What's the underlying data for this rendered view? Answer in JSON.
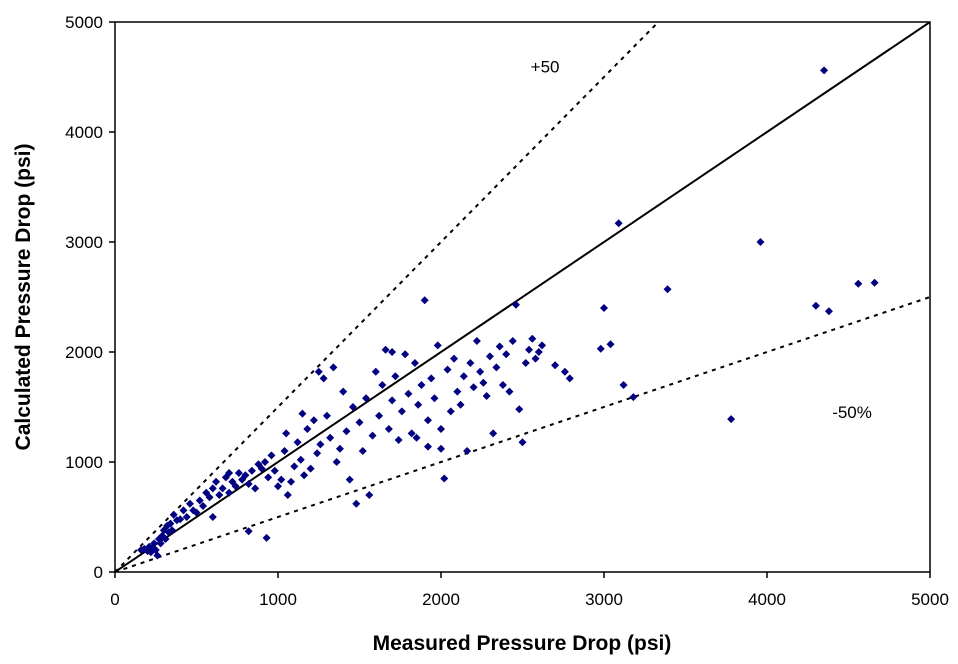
{
  "chart_data": {
    "type": "scatter",
    "title": "",
    "xlabel": "Measured Pressure Drop (psi)",
    "ylabel": "Calculated Pressure Drop (psi)",
    "xlim": [
      0,
      5000
    ],
    "ylim": [
      0,
      5000
    ],
    "x_ticks": [
      "0",
      "1000",
      "2000",
      "3000",
      "4000",
      "5000"
    ],
    "y_ticks": [
      "0",
      "1000",
      "2000",
      "3000",
      "4000",
      "5000"
    ],
    "grid": false,
    "legend": "none",
    "marker": "diamond",
    "colors": {
      "points": "#000080",
      "lines": "#000000"
    },
    "reference_lines": [
      {
        "style": "solid",
        "slope": 1.0
      },
      {
        "style": "dotted",
        "slope": 1.5
      },
      {
        "style": "dotted",
        "slope": 0.5
      }
    ],
    "annotations": [
      {
        "text": "+50",
        "x": 2550,
        "y": 4540
      },
      {
        "text": "-50%",
        "x": 4400,
        "y": 1400
      }
    ],
    "series": [
      {
        "points": [
          [
            160,
            200
          ],
          [
            180,
            210
          ],
          [
            200,
            190
          ],
          [
            210,
            230
          ],
          [
            220,
            180
          ],
          [
            230,
            220
          ],
          [
            240,
            260
          ],
          [
            250,
            200
          ],
          [
            260,
            150
          ],
          [
            270,
            300
          ],
          [
            280,
            260
          ],
          [
            290,
            330
          ],
          [
            300,
            380
          ],
          [
            310,
            300
          ],
          [
            320,
            420
          ],
          [
            330,
            360
          ],
          [
            340,
            440
          ],
          [
            350,
            380
          ],
          [
            360,
            520
          ],
          [
            380,
            470
          ],
          [
            400,
            480
          ],
          [
            420,
            560
          ],
          [
            440,
            500
          ],
          [
            460,
            620
          ],
          [
            480,
            560
          ],
          [
            500,
            540
          ],
          [
            520,
            650
          ],
          [
            540,
            600
          ],
          [
            560,
            720
          ],
          [
            580,
            680
          ],
          [
            600,
            760
          ],
          [
            620,
            820
          ],
          [
            640,
            700
          ],
          [
            660,
            760
          ],
          [
            680,
            860
          ],
          [
            700,
            720
          ],
          [
            720,
            820
          ],
          [
            740,
            780
          ],
          [
            760,
            900
          ],
          [
            780,
            840
          ],
          [
            800,
            880
          ],
          [
            820,
            800
          ],
          [
            840,
            920
          ],
          [
            860,
            760
          ],
          [
            880,
            980
          ],
          [
            900,
            940
          ],
          [
            920,
            1000
          ],
          [
            940,
            860
          ],
          [
            960,
            1060
          ],
          [
            980,
            920
          ],
          [
            1000,
            780
          ],
          [
            1020,
            840
          ],
          [
            1040,
            1100
          ],
          [
            1060,
            700
          ],
          [
            1080,
            820
          ],
          [
            1100,
            960
          ],
          [
            1120,
            1180
          ],
          [
            1140,
            1020
          ],
          [
            1160,
            880
          ],
          [
            1180,
            1300
          ],
          [
            1200,
            940
          ],
          [
            1220,
            1380
          ],
          [
            1240,
            1080
          ],
          [
            1260,
            1160
          ],
          [
            1280,
            1760
          ],
          [
            1300,
            1420
          ],
          [
            1320,
            1220
          ],
          [
            1340,
            1860
          ],
          [
            1360,
            1000
          ],
          [
            1380,
            1120
          ],
          [
            1400,
            1640
          ],
          [
            1420,
            1280
          ],
          [
            1440,
            840
          ],
          [
            1460,
            1500
          ],
          [
            1480,
            620
          ],
          [
            1500,
            1360
          ],
          [
            1520,
            1100
          ],
          [
            1540,
            1580
          ],
          [
            1560,
            700
          ],
          [
            1580,
            1240
          ],
          [
            1600,
            1820
          ],
          [
            1620,
            1420
          ],
          [
            1640,
            1700
          ],
          [
            1660,
            2020
          ],
          [
            1680,
            1300
          ],
          [
            1700,
            1560
          ],
          [
            1720,
            1780
          ],
          [
            1740,
            1200
          ],
          [
            1760,
            1460
          ],
          [
            1780,
            1980
          ],
          [
            1800,
            1620
          ],
          [
            1820,
            1260
          ],
          [
            1840,
            1900
          ],
          [
            1860,
            1520
          ],
          [
            1880,
            1700
          ],
          [
            1900,
            2470
          ],
          [
            1920,
            1380
          ],
          [
            1940,
            1760
          ],
          [
            1960,
            1580
          ],
          [
            1980,
            2060
          ],
          [
            2000,
            1120
          ],
          [
            2020,
            850
          ],
          [
            2040,
            1840
          ],
          [
            2060,
            1460
          ],
          [
            2080,
            1940
          ],
          [
            2100,
            1640
          ],
          [
            2120,
            1520
          ],
          [
            2140,
            1780
          ],
          [
            2160,
            1100
          ],
          [
            2180,
            1900
          ],
          [
            2200,
            1680
          ],
          [
            2220,
            2100
          ],
          [
            2240,
            1820
          ],
          [
            2260,
            1720
          ],
          [
            2280,
            1600
          ],
          [
            2300,
            1960
          ],
          [
            2320,
            1260
          ],
          [
            2340,
            1860
          ],
          [
            2360,
            2050
          ],
          [
            2380,
            1700
          ],
          [
            2400,
            1980
          ],
          [
            2420,
            1640
          ],
          [
            2440,
            2100
          ],
          [
            2460,
            2430
          ],
          [
            2480,
            1480
          ],
          [
            2500,
            1180
          ],
          [
            2520,
            1900
          ],
          [
            2540,
            2020
          ],
          [
            2560,
            2120
          ],
          [
            2580,
            1940
          ],
          [
            2600,
            2000
          ],
          [
            2620,
            2060
          ],
          [
            2700,
            1880
          ],
          [
            2760,
            1820
          ],
          [
            2790,
            1760
          ],
          [
            2980,
            2030
          ],
          [
            3000,
            2400
          ],
          [
            3040,
            2070
          ],
          [
            3090,
            3170
          ],
          [
            3120,
            1700
          ],
          [
            3180,
            1590
          ],
          [
            3390,
            2570
          ],
          [
            3780,
            1390
          ],
          [
            3960,
            3000
          ],
          [
            4300,
            2420
          ],
          [
            4350,
            4560
          ],
          [
            4380,
            2370
          ],
          [
            4560,
            2620
          ],
          [
            4660,
            2630
          ],
          [
            930,
            310
          ],
          [
            820,
            370
          ],
          [
            600,
            500
          ],
          [
            700,
            900
          ],
          [
            1050,
            1260
          ],
          [
            1150,
            1440
          ],
          [
            1250,
            1820
          ],
          [
            1700,
            2000
          ],
          [
            1850,
            1220
          ],
          [
            1920,
            1140
          ],
          [
            2000,
            1300
          ]
        ]
      }
    ]
  }
}
